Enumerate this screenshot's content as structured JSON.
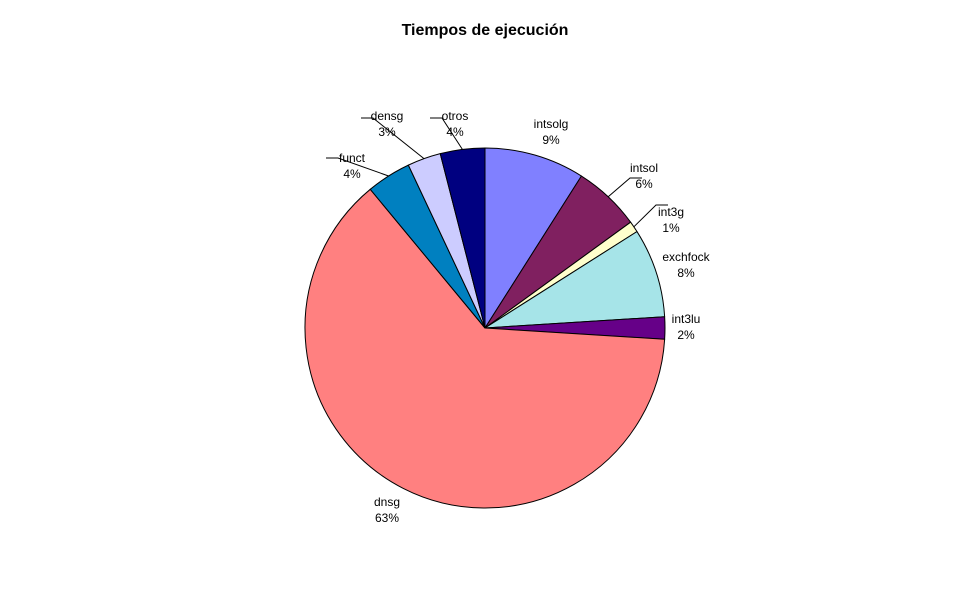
{
  "chart_data": {
    "type": "pie",
    "title": "Tiempos de ejecución",
    "start_angle_deg": 0,
    "direction": "clockwise",
    "slices": [
      {
        "label": "intsolg",
        "value": 9,
        "percent_label": "9%",
        "color": "#8080FF"
      },
      {
        "label": "intsol",
        "value": 6,
        "percent_label": "6%",
        "color": "#802060"
      },
      {
        "label": "int3g",
        "value": 1,
        "percent_label": "1%",
        "color": "#FFFFCC"
      },
      {
        "label": "exchfock",
        "value": 8,
        "percent_label": "8%",
        "color": "#A6E4E8"
      },
      {
        "label": "int3lu",
        "value": 2,
        "percent_label": "2%",
        "color": "#660088"
      },
      {
        "label": "dnsg",
        "value": 63,
        "percent_label": "63%",
        "color": "#FF8080"
      },
      {
        "label": "funct",
        "value": 4,
        "percent_label": "4%",
        "color": "#0080C0"
      },
      {
        "label": "densg",
        "value": 3,
        "percent_label": "3%",
        "color": "#CCCCFF"
      },
      {
        "label": "otros",
        "value": 4,
        "percent_label": "4%",
        "color": "#000080"
      }
    ]
  }
}
